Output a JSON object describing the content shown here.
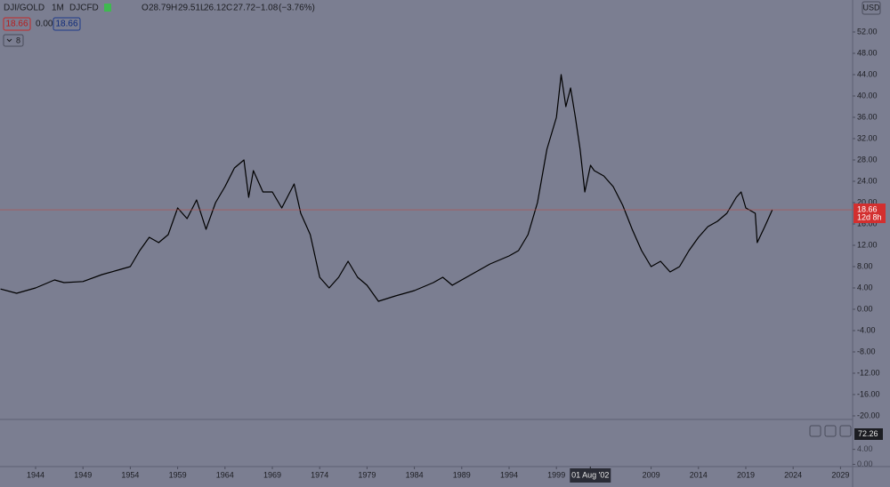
{
  "header": {
    "symbol": "DJI/GOLD",
    "interval": "1M",
    "exchange": "DJCFD",
    "open_label": "O",
    "open": 28.79,
    "high_label": "H",
    "high": 29.51,
    "low_label": "L",
    "low": 26.12,
    "close_label": "C",
    "close": 27.72,
    "change": "−1.08",
    "change_pct": "(−3.76%)",
    "sell": 18.66,
    "spread": "0.00",
    "buy": 18.66,
    "indicators_count": 8,
    "currency": "USD"
  },
  "chart_data": {
    "type": "line",
    "color": "#000000",
    "grid": false,
    "x": [
      1940.3,
      1942,
      1944,
      1946,
      1947,
      1949,
      1951,
      1953,
      1954,
      1955,
      1956,
      1957,
      1958,
      1959,
      1960,
      1961,
      1962,
      1963,
      1964,
      1965,
      1966,
      1966.5,
      1967,
      1968,
      1969,
      1970,
      1971.3,
      1972,
      1973,
      1974,
      1975,
      1976,
      1977,
      1978,
      1979,
      1980.2,
      1982,
      1984,
      1986,
      1987,
      1988,
      1990,
      1992,
      1994,
      1995,
      1996,
      1997,
      1998,
      1999,
      1999.5,
      2000,
      2000.5,
      2001,
      2001.5,
      2002,
      2002.6,
      2003,
      2004,
      2005,
      2006,
      2007,
      2008,
      2009,
      2010,
      2011,
      2012,
      2013,
      2014,
      2015,
      2016,
      2017,
      2018,
      2018.5,
      2019,
      2020,
      2020.2,
      2021,
      2021.8
    ],
    "series": [
      {
        "name": "DJI/GOLD",
        "values": [
          3.8,
          3.0,
          4.0,
          5.5,
          5.0,
          5.2,
          6.5,
          7.5,
          8.0,
          11,
          13.5,
          12.5,
          14,
          19,
          17,
          20.5,
          15,
          20,
          23,
          26.5,
          28,
          21,
          26,
          22,
          22,
          19,
          23.5,
          18,
          14,
          6,
          4,
          6,
          9,
          6,
          4.5,
          1.5,
          2.5,
          3.5,
          5,
          6,
          4.5,
          6.5,
          8.5,
          10,
          11,
          14,
          20,
          30,
          36,
          44,
          38,
          41.5,
          36,
          30,
          22,
          27,
          26,
          25,
          23,
          19.5,
          15,
          11,
          8,
          9,
          7,
          8,
          11,
          13.5,
          15.5,
          16.5,
          18,
          21,
          22,
          19,
          18,
          12.5,
          15.5,
          18.66
        ]
      }
    ],
    "last_value": 18.66,
    "countdown": "12d 8h",
    "xlim": [
      1940.24,
      2030.28
    ],
    "ylim": [
      -20.67,
      58
    ],
    "xticks": [
      1944,
      1949,
      1954,
      1959,
      1964,
      1969,
      1974,
      1979,
      1984,
      1989,
      1994,
      1999,
      2009,
      2014,
      2019,
      2024,
      2029
    ],
    "crosshair_x": {
      "value": 2002.58,
      "label": "01 Aug '02"
    },
    "yticks": [
      {
        "value": 52,
        "label": "52.00"
      },
      {
        "value": 48,
        "label": "48.00"
      },
      {
        "value": 44,
        "label": "44.00"
      },
      {
        "value": 40,
        "label": "40.00"
      },
      {
        "value": 36,
        "label": "36.00"
      },
      {
        "value": 32,
        "label": "32.00"
      },
      {
        "value": 28,
        "label": "28.00"
      },
      {
        "value": 24,
        "label": "24.00"
      },
      {
        "value": 20,
        "label": "20.00"
      },
      {
        "value": 16,
        "label": "16.00"
      },
      {
        "value": 12,
        "label": "12.00"
      },
      {
        "value": 8,
        "label": "8.00"
      },
      {
        "value": 4,
        "label": "4.00"
      },
      {
        "value": 0,
        "label": "0.00"
      },
      {
        "value": -4,
        "label": "-4.00"
      },
      {
        "value": -8,
        "label": "-8.00"
      },
      {
        "value": -12,
        "label": "-12.00"
      },
      {
        "value": -16,
        "label": "-16.00"
      },
      {
        "value": -20,
        "label": "-20.00"
      }
    ]
  },
  "lower_pane": {
    "ylim": [
      -0.6,
      12
    ],
    "yticks": [
      {
        "value": 4,
        "label": "4.00"
      },
      {
        "value": 0,
        "label": "0.00"
      }
    ],
    "current_label": "72.26"
  }
}
